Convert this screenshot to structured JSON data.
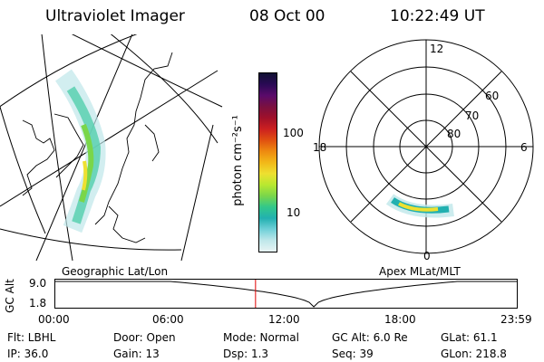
{
  "header": {
    "title": "Ultraviolet Imager",
    "date": "08 Oct 00",
    "time": "10:22:49 UT"
  },
  "colorbar": {
    "unit_label": "photon cm⁻²s⁻¹",
    "ticks": [
      "100",
      "10"
    ],
    "colors": [
      "#111133",
      "#2a0a55",
      "#5a0a6a",
      "#7a1040",
      "#a0102a",
      "#cc2020",
      "#e05010",
      "#ee8a10",
      "#f2b818",
      "#eee030",
      "#b9e830",
      "#7ad64a",
      "#32c88a",
      "#22b0b0",
      "#70d0d8",
      "#bfe7ea",
      "#e8f3f4"
    ]
  },
  "polar": {
    "mlt_labels": {
      "top": "12",
      "left": "18",
      "right": "6",
      "bottom": "0"
    },
    "lat_labels": [
      "60",
      "70",
      "80"
    ]
  },
  "timeline": {
    "left_title": "Geographic Lat/Lon",
    "right_title": "Apex MLat/MLT",
    "y_axis_label": "GC Alt",
    "y_ticks": [
      "9.0",
      "1.8"
    ],
    "x_ticks": [
      "00:00",
      "06:00",
      "12:00",
      "18:00",
      "23:59"
    ],
    "current_time_fraction": 0.434
  },
  "info": {
    "flt": "Flt: LBHL",
    "door": "Door: Open",
    "mode": "Mode: Normal",
    "gc_alt": "GC Alt: 6.0 Re",
    "glat": "GLat:  61.1",
    "ip": "IP: 36.0",
    "gain": "Gain: 13",
    "dsp": "Dsp:     1.3",
    "seq": "Seq: 39",
    "glon": "GLon: 218.8"
  }
}
